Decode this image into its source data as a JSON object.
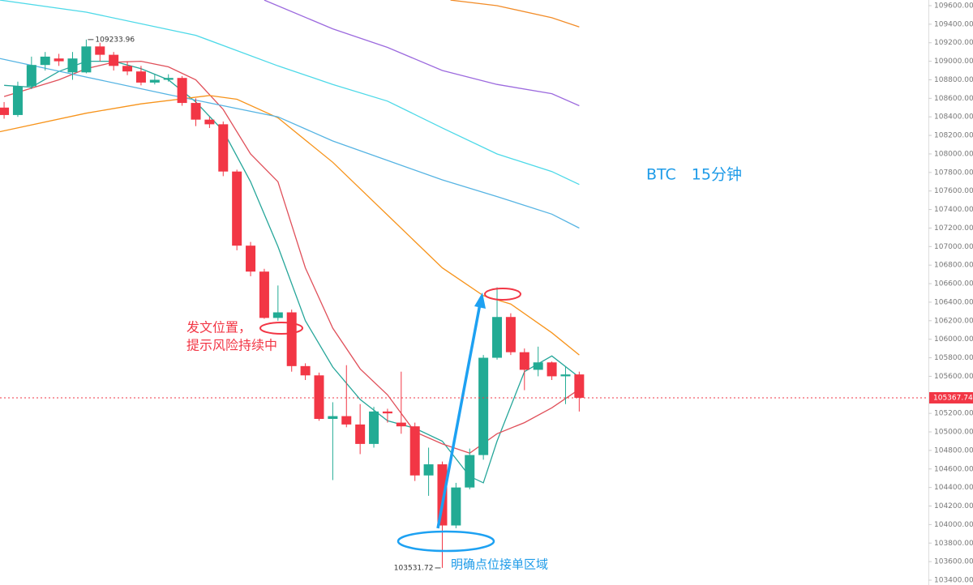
{
  "chart_data": {
    "type": "candlestick",
    "up_color": "#22ab94",
    "down_color": "#f23645",
    "xlim": [
      -0.3,
      67.5
    ],
    "ylim": [
      103400,
      109600
    ],
    "yticks": [
      {
        "value": 103400,
        "label": "103400.00"
      },
      {
        "value": 103600,
        "label": "103600.00"
      },
      {
        "value": 103800,
        "label": "103800.00"
      },
      {
        "value": 104000,
        "label": "104000.00"
      },
      {
        "value": 104200,
        "label": "104200.00"
      },
      {
        "value": 104400,
        "label": "104400.00"
      },
      {
        "value": 104600,
        "label": "104600.00"
      },
      {
        "value": 104800,
        "label": "104800.00"
      },
      {
        "value": 105000,
        "label": "105000.00"
      },
      {
        "value": 105200,
        "label": "105200.00"
      },
      {
        "value": 105600,
        "label": "105600.00"
      },
      {
        "value": 105800,
        "label": "105800.00"
      },
      {
        "value": 106000,
        "label": "106000.00"
      },
      {
        "value": 106200,
        "label": "106200.00"
      },
      {
        "value": 106400,
        "label": "106400.00"
      },
      {
        "value": 106600,
        "label": "106600.00"
      },
      {
        "value": 106800,
        "label": "106800.00"
      },
      {
        "value": 107000,
        "label": "107000.00"
      },
      {
        "value": 107200,
        "label": "107200.00"
      },
      {
        "value": 107400,
        "label": "107400.00"
      },
      {
        "value": 107600,
        "label": "107600.00"
      },
      {
        "value": 107800,
        "label": "107800.00"
      },
      {
        "value": 108000,
        "label": "108000.00"
      },
      {
        "value": 108200,
        "label": "108200.00"
      },
      {
        "value": 108400,
        "label": "108400.00"
      },
      {
        "value": 108600,
        "label": "108600.00"
      },
      {
        "value": 108800,
        "label": "108800.00"
      },
      {
        "value": 109000,
        "label": "109000.00"
      },
      {
        "value": 109200,
        "label": "109200.00"
      },
      {
        "value": 109400,
        "label": "109400.00"
      },
      {
        "value": 109600,
        "label": "109600.00"
      }
    ],
    "open": [
      108500,
      108420,
      108730,
      108960,
      109030,
      108880,
      108880,
      109160,
      109070,
      108950,
      108890,
      108770,
      108800,
      108820,
      108550,
      108370,
      108320,
      107810,
      107010,
      106730,
      106230,
      106290,
      105710,
      105610,
      105140,
      105170,
      105080,
      104870,
      105220,
      105100,
      105060,
      104530,
      104650,
      103990,
      104400,
      104750,
      105800,
      106240,
      105860,
      105670,
      105750,
      105600,
      105620
    ],
    "high": [
      108560,
      108780,
      109050,
      109100,
      109080,
      109100,
      109234,
      109200,
      109100,
      109000,
      108950,
      108860,
      108860,
      108840,
      108600,
      108400,
      108350,
      107830,
      107050,
      106760,
      106580,
      106320,
      105740,
      105640,
      105320,
      105720,
      105300,
      105270,
      105250,
      105650,
      105100,
      104830,
      104680,
      104450,
      104820,
      105830,
      106560,
      106280,
      105900,
      105920,
      105760,
      105700,
      105650
    ],
    "low": [
      108380,
      108400,
      108700,
      108900,
      108950,
      108800,
      108870,
      109000,
      108900,
      108850,
      108740,
      108750,
      108780,
      108520,
      108300,
      108280,
      107760,
      106960,
      106680,
      106220,
      106200,
      105650,
      105560,
      105120,
      104480,
      105050,
      104760,
      104830,
      105100,
      104980,
      104470,
      104310,
      103532,
      103960,
      104380,
      104700,
      105780,
      105830,
      105450,
      105600,
      105560,
      105300,
      105220
    ],
    "close": [
      108420,
      108730,
      108960,
      109050,
      109000,
      109030,
      109160,
      109070,
      108950,
      108890,
      108770,
      108800,
      108820,
      108550,
      108370,
      108320,
      107810,
      107010,
      106730,
      106230,
      106290,
      105710,
      105610,
      105140,
      105170,
      105080,
      104870,
      105220,
      105200,
      105060,
      104530,
      104650,
      103990,
      104400,
      104750,
      105800,
      106240,
      105860,
      105670,
      105750,
      105600,
      105620,
      105368
    ],
    "series": [
      {
        "color": "#26a69a",
        "x": [
          0,
          2,
          4,
          6,
          8,
          10,
          12,
          14,
          16,
          18,
          20,
          22,
          24,
          26,
          28,
          30,
          32,
          34,
          35,
          36,
          38,
          40,
          42
        ],
        "values": [
          108740,
          108720,
          108890,
          109000,
          109000,
          108920,
          108800,
          108560,
          108250,
          107700,
          107000,
          106200,
          105700,
          105350,
          105120,
          105040,
          104900,
          104520,
          104450,
          104900,
          105650,
          105820,
          105590
        ]
      },
      {
        "color": "#e0505a",
        "x": [
          0,
          4,
          6,
          8,
          10,
          12,
          14,
          16,
          18,
          20,
          22,
          24,
          26,
          28,
          30,
          32,
          34,
          36,
          38,
          40,
          42
        ],
        "values": [
          108620,
          108800,
          108920,
          108990,
          109000,
          108940,
          108800,
          108480,
          108000,
          107700,
          106770,
          106120,
          105680,
          105400,
          105000,
          104870,
          104770,
          104980,
          105100,
          105260,
          105460
        ]
      },
      {
        "color": "#f7931a",
        "x": [
          -0.3,
          6,
          10,
          15,
          17,
          20,
          24,
          28,
          32,
          35,
          37,
          40,
          42
        ],
        "values": [
          108240,
          108440,
          108540,
          108630,
          108590,
          108390,
          107910,
          107340,
          106770,
          106470,
          106380,
          106070,
          105830
        ]
      },
      {
        "color": "#4dd9e8",
        "x": [
          -0.3,
          6,
          14,
          20,
          24,
          28,
          32,
          36,
          40,
          42
        ],
        "values": [
          109660,
          109530,
          109280,
          108950,
          108750,
          108570,
          108280,
          108000,
          107810,
          107670
        ]
      },
      {
        "color": "#56b4e3",
        "x": [
          -0.3,
          6,
          12,
          16,
          20,
          24,
          28,
          32,
          36,
          40,
          42
        ],
        "values": [
          109030,
          108830,
          108640,
          108520,
          108400,
          108140,
          107930,
          107720,
          107540,
          107350,
          107200
        ]
      },
      {
        "color": "#9c6ade",
        "x": [
          19,
          24,
          28,
          32,
          36,
          40,
          42
        ],
        "values": [
          109660,
          109350,
          109150,
          108900,
          108750,
          108650,
          108520
        ]
      },
      {
        "color": "#f28c28",
        "x": [
          32.6,
          36,
          40,
          42
        ],
        "values": [
          109660,
          109600,
          109470,
          109370
        ]
      }
    ],
    "last_price": 105367.74,
    "high_marker": 109233.96,
    "low_marker": 103531.72,
    "annotations": [
      "BTC　15分钟",
      "发文位置，",
      "提示风险持续中",
      "明确点位接单区域"
    ]
  }
}
